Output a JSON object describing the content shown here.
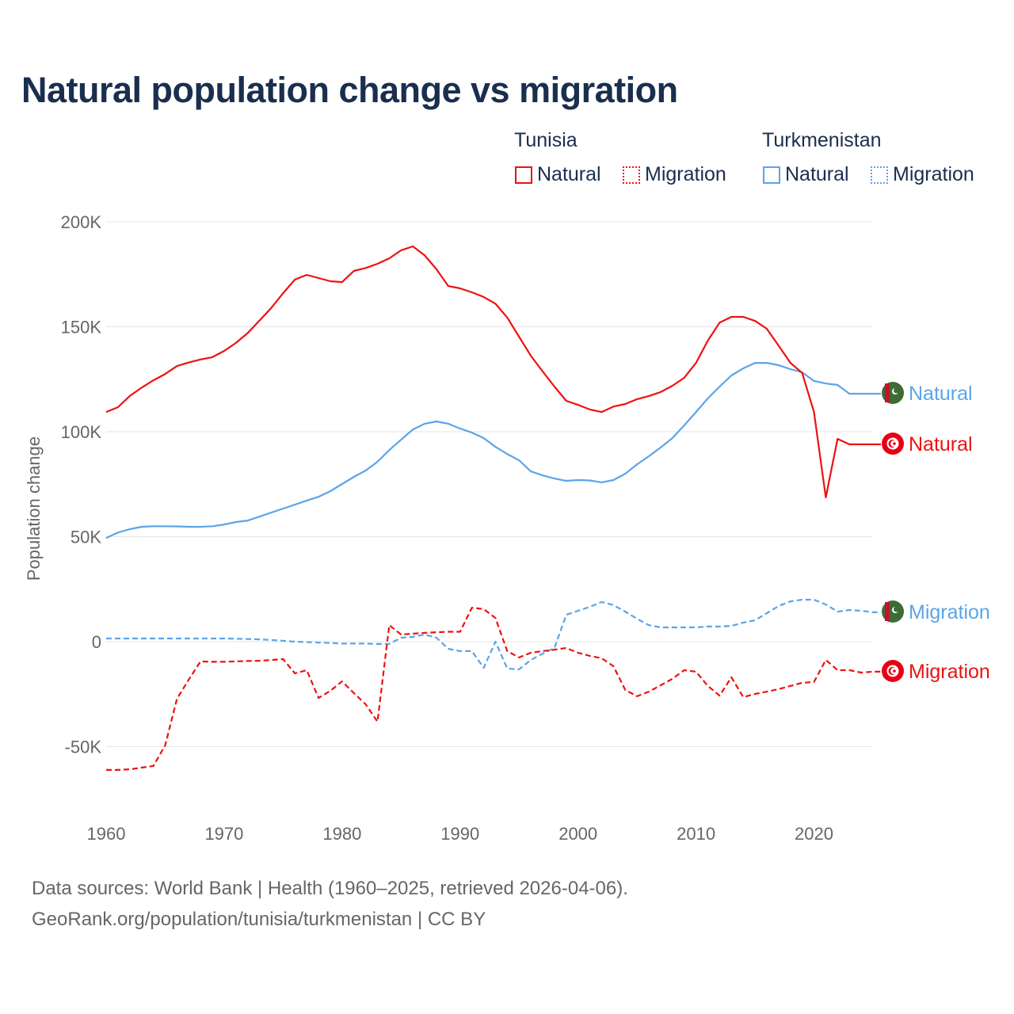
{
  "title": "Natural population change vs migration",
  "legend": {
    "groups": [
      {
        "name": "Tunisia",
        "items": [
          {
            "label": "Natural",
            "style": "solid"
          },
          {
            "label": "Migration",
            "style": "dotted"
          }
        ],
        "color": "#ee1111"
      },
      {
        "name": "Turkmenistan",
        "items": [
          {
            "label": "Natural",
            "style": "solid"
          },
          {
            "label": "Migration",
            "style": "dotted"
          }
        ],
        "color": "#5ba4ea"
      }
    ]
  },
  "footer": {
    "line1": "Data sources: World Bank | Health (1960–2025, retrieved 2026-04-06).",
    "line2": "GeoRank.org/population/tunisia/turkmenistan | CC BY"
  },
  "chart_data": {
    "type": "line",
    "title": "Natural population change vs migration",
    "xlabel": "",
    "ylabel": "Population change",
    "xlim": [
      1960,
      2025
    ],
    "ylim": [
      -50000,
      200000
    ],
    "yticks": [
      200000,
      150000,
      100000,
      50000,
      0,
      -50000
    ],
    "ytick_labels": [
      "200K",
      "150K",
      "100K",
      "50K",
      "0",
      "-50K"
    ],
    "xticks": [
      1960,
      1970,
      1980,
      1990,
      2000,
      2010,
      2020
    ],
    "xtick_labels": [
      "1960",
      "1970",
      "1980",
      "1990",
      "2000",
      "2010",
      "2020"
    ],
    "grid": true,
    "legend_position": "top-right",
    "x_start": 1960,
    "series": [
      {
        "name": "Tunisia Natural",
        "end_label": "Natural",
        "color": "#ee1111",
        "dash": false,
        "flag": "tunisia",
        "values": [
          109.4,
          111.7,
          117,
          121,
          124.5,
          127.5,
          131.3,
          133,
          134.4,
          135.5,
          138.5,
          142.3,
          147,
          153,
          159,
          166,
          172.5,
          174.7,
          173.2,
          171.7,
          171.3,
          176.6,
          178,
          180,
          182.6,
          186.4,
          188.3,
          184,
          177.4,
          169.4,
          168.3,
          166.4,
          164.2,
          161,
          154.4,
          145.3,
          136.2,
          128.7,
          121.5,
          114.7,
          112.8,
          110.6,
          109.4,
          112,
          113.2,
          115.5,
          117,
          118.9,
          121.9,
          125.7,
          132.8,
          143.4,
          152,
          154.7,
          154.7,
          152.8,
          149,
          141,
          132.8,
          128,
          109.4,
          68.7,
          96.6,
          94,
          94,
          94
        ]
      },
      {
        "name": "Turkmenistan Natural",
        "end_label": "Natural",
        "color": "#5ba4ea",
        "dash": false,
        "flag": "turkmenistan",
        "values": [
          49.4,
          52,
          53.6,
          54.7,
          55,
          55,
          54.9,
          54.7,
          54.7,
          55,
          55.8,
          57,
          57.7,
          59.6,
          61.5,
          63.4,
          65.3,
          67.2,
          69,
          71.7,
          75.1,
          78.5,
          81.5,
          85.7,
          91.3,
          96.2,
          101.1,
          103.8,
          104.9,
          103.8,
          101.5,
          99.6,
          97,
          92.8,
          89.4,
          86.4,
          81.1,
          79.2,
          77.7,
          76.6,
          77,
          76.8,
          75.9,
          77,
          80,
          84.5,
          88.3,
          92.5,
          97,
          103,
          109.4,
          115.9,
          121.5,
          126.8,
          130.2,
          132.8,
          132.8,
          131.7,
          129.8,
          128.3,
          124.2,
          123,
          122.3,
          118.1,
          118.1,
          118.1
        ]
      },
      {
        "name": "Tunisia Migration",
        "end_label": "Migration",
        "color": "#ee1111",
        "dash": true,
        "flag": "tunisia",
        "values": [
          -61.1,
          -61.1,
          -60.8,
          -60,
          -59.2,
          -49.4,
          -27.2,
          -18.1,
          -9.4,
          -9.6,
          -9.6,
          -9.4,
          -9.2,
          -9.1,
          -8.7,
          -8.3,
          -15.1,
          -13.6,
          -26.8,
          -23.4,
          -18.9,
          -24.5,
          -29.8,
          -38.1,
          7.9,
          3.4,
          3.8,
          4.2,
          4.5,
          4.7,
          4.7,
          16.2,
          15.5,
          11.3,
          -4.5,
          -7.5,
          -5.3,
          -4.5,
          -3.8,
          -3,
          -5.3,
          -6.8,
          -7.9,
          -11.7,
          -23,
          -26,
          -23.8,
          -20.8,
          -17.7,
          -13.6,
          -14.3,
          -21.1,
          -25.7,
          -17,
          -26.4,
          -24.9,
          -23.8,
          -22.6,
          -21.1,
          -19.6,
          -19.2,
          -8.7,
          -13.6,
          -13.6,
          -14.7,
          -14.3
        ]
      },
      {
        "name": "Turkmenistan Migration",
        "end_label": "Migration",
        "color": "#5ba4ea",
        "dash": true,
        "flag": "turkmenistan",
        "values": [
          1.5,
          1.5,
          1.5,
          1.5,
          1.5,
          1.5,
          1.5,
          1.5,
          1.5,
          1.5,
          1.5,
          1.4,
          1.3,
          1.1,
          0.8,
          0.4,
          0,
          -0.2,
          -0.4,
          -0.6,
          -0.9,
          -0.9,
          -0.9,
          -1.1,
          -1.1,
          1.9,
          2.3,
          3.4,
          1.9,
          -3.4,
          -4.5,
          -4.5,
          -12.5,
          0,
          -12.8,
          -13.2,
          -8.7,
          -5.7,
          -3,
          12.8,
          14.7,
          16.6,
          18.9,
          17.4,
          14.3,
          10.9,
          7.9,
          6.8,
          6.8,
          6.8,
          6.8,
          7.2,
          7.2,
          7.5,
          9.1,
          10.2,
          13.6,
          17,
          19.2,
          20,
          20,
          17.7,
          14.3,
          15.1,
          14.7,
          14
        ]
      }
    ],
    "value_unit": "thousands"
  }
}
